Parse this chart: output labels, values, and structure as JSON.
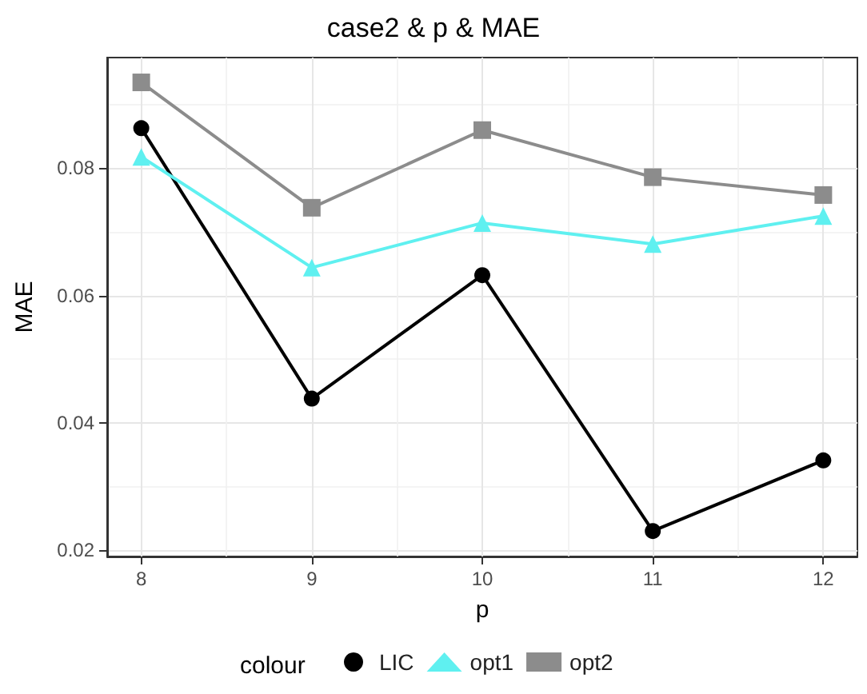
{
  "chart_data": {
    "type": "line",
    "title": "case2 & p & MAE",
    "xlabel": "p",
    "ylabel": "MAE",
    "legend_title": "colour",
    "x": [
      8,
      9,
      10,
      11,
      12
    ],
    "series": [
      {
        "name": "LIC",
        "color": "#000000",
        "marker": "circle",
        "values": [
          0.0863,
          0.0438,
          0.0632,
          0.023,
          0.0341
        ]
      },
      {
        "name": "opt1",
        "color": "#5ff0f0",
        "marker": "triangle",
        "values": [
          0.0818,
          0.0644,
          0.0714,
          0.0681,
          0.0725
        ]
      },
      {
        "name": "opt2",
        "color": "#8c8c8c",
        "marker": "square",
        "values": [
          0.0935,
          0.0738,
          0.086,
          0.0786,
          0.0758
        ]
      }
    ],
    "xlim": [
      7.8,
      12.2
    ],
    "xticks": [
      8,
      9,
      10,
      11,
      12
    ],
    "ylim": [
      0.019,
      0.0974
    ],
    "yticks": [
      0.02,
      0.04,
      0.06,
      0.08
    ],
    "grid": true,
    "legend": "bottom"
  }
}
